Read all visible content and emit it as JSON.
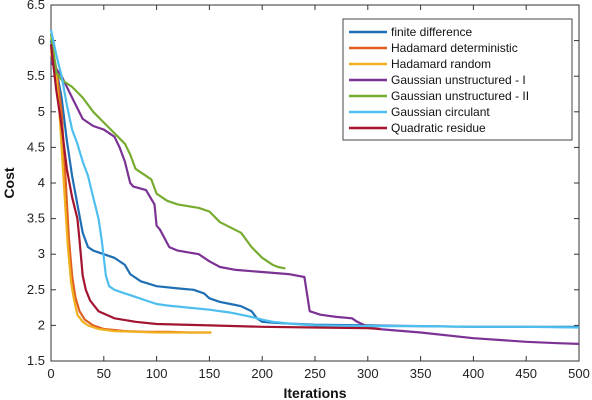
{
  "chart_data": {
    "type": "line",
    "title": "",
    "xlabel": "Iterations",
    "ylabel": "Cost",
    "xlim": [
      0,
      500
    ],
    "ylim": [
      1.5,
      6.5
    ],
    "xticks": [
      "0",
      "50",
      "100",
      "150",
      "200",
      "250",
      "300",
      "350",
      "400",
      "450",
      "500"
    ],
    "yticks": [
      "1.5",
      "2",
      "2.5",
      "3",
      "3.5",
      "4",
      "4.5",
      "5",
      "5.5",
      "6",
      "6.5"
    ],
    "grid": false,
    "legend_position": "top-right",
    "series": [
      {
        "name": "finite difference",
        "color": "#1f6fb5",
        "points": [
          [
            0,
            6.0
          ],
          [
            5,
            5.6
          ],
          [
            10,
            5.2
          ],
          [
            15,
            4.6
          ],
          [
            20,
            4.1
          ],
          [
            25,
            3.7
          ],
          [
            30,
            3.3
          ],
          [
            35,
            3.1
          ],
          [
            40,
            3.05
          ],
          [
            50,
            3.0
          ],
          [
            60,
            2.95
          ],
          [
            70,
            2.85
          ],
          [
            75,
            2.72
          ],
          [
            85,
            2.62
          ],
          [
            100,
            2.55
          ],
          [
            120,
            2.52
          ],
          [
            135,
            2.5
          ],
          [
            145,
            2.45
          ],
          [
            150,
            2.38
          ],
          [
            160,
            2.33
          ],
          [
            170,
            2.3
          ],
          [
            180,
            2.27
          ],
          [
            190,
            2.2
          ],
          [
            195,
            2.1
          ],
          [
            200,
            2.05
          ],
          [
            210,
            2.04
          ],
          [
            220,
            2.03
          ],
          [
            250,
            2.01
          ],
          [
            300,
            2.0
          ],
          [
            350,
            1.99
          ],
          [
            400,
            1.98
          ],
          [
            450,
            1.98
          ],
          [
            500,
            1.98
          ]
        ]
      },
      {
        "name": "Hadamard deterministic",
        "color": "#e06020",
        "points": [
          [
            0,
            5.9
          ],
          [
            5,
            5.6
          ],
          [
            10,
            5.0
          ],
          [
            14,
            4.0
          ],
          [
            17,
            3.2
          ],
          [
            20,
            2.7
          ],
          [
            23,
            2.4
          ],
          [
            27,
            2.2
          ],
          [
            32,
            2.08
          ],
          [
            40,
            2.0
          ],
          [
            50,
            1.95
          ],
          [
            70,
            1.92
          ],
          [
            90,
            1.91
          ],
          [
            110,
            1.91
          ],
          [
            130,
            1.9
          ],
          [
            152,
            1.9
          ]
        ]
      },
      {
        "name": "Hadamard random",
        "color": "#f0b020",
        "points": [
          [
            0,
            5.85
          ],
          [
            5,
            5.5
          ],
          [
            8,
            5.0
          ],
          [
            10,
            4.5
          ],
          [
            13,
            3.8
          ],
          [
            16,
            3.1
          ],
          [
            19,
            2.6
          ],
          [
            22,
            2.35
          ],
          [
            25,
            2.15
          ],
          [
            30,
            2.05
          ],
          [
            35,
            2.0
          ],
          [
            45,
            1.95
          ],
          [
            60,
            1.92
          ],
          [
            80,
            1.91
          ],
          [
            100,
            1.9
          ],
          [
            130,
            1.9
          ],
          [
            152,
            1.9
          ]
        ]
      },
      {
        "name": "Gaussian unstructured - I",
        "color": "#7b3294",
        "points": [
          [
            0,
            5.7
          ],
          [
            10,
            5.5
          ],
          [
            20,
            5.2
          ],
          [
            30,
            4.9
          ],
          [
            40,
            4.8
          ],
          [
            50,
            4.75
          ],
          [
            60,
            4.65
          ],
          [
            65,
            4.5
          ],
          [
            70,
            4.3
          ],
          [
            75,
            4.0
          ],
          [
            78,
            3.95
          ],
          [
            90,
            3.9
          ],
          [
            98,
            3.7
          ],
          [
            100,
            3.4
          ],
          [
            103,
            3.35
          ],
          [
            112,
            3.1
          ],
          [
            120,
            3.05
          ],
          [
            140,
            3.0
          ],
          [
            150,
            2.9
          ],
          [
            160,
            2.82
          ],
          [
            175,
            2.78
          ],
          [
            200,
            2.75
          ],
          [
            225,
            2.72
          ],
          [
            240,
            2.68
          ],
          [
            245,
            2.2
          ],
          [
            255,
            2.15
          ],
          [
            270,
            2.12
          ],
          [
            285,
            2.1
          ],
          [
            290,
            2.05
          ],
          [
            300,
            1.98
          ],
          [
            310,
            1.95
          ],
          [
            350,
            1.9
          ],
          [
            400,
            1.82
          ],
          [
            450,
            1.77
          ],
          [
            480,
            1.75
          ],
          [
            500,
            1.74
          ]
        ]
      },
      {
        "name": "Gaussian unstructured - II",
        "color": "#77ac30",
        "points": [
          [
            0,
            6.1
          ],
          [
            5,
            5.55
          ],
          [
            10,
            5.45
          ],
          [
            20,
            5.35
          ],
          [
            30,
            5.2
          ],
          [
            40,
            5.0
          ],
          [
            50,
            4.85
          ],
          [
            60,
            4.7
          ],
          [
            70,
            4.55
          ],
          [
            75,
            4.4
          ],
          [
            80,
            4.2
          ],
          [
            95,
            4.05
          ],
          [
            100,
            3.85
          ],
          [
            110,
            3.75
          ],
          [
            120,
            3.7
          ],
          [
            140,
            3.65
          ],
          [
            150,
            3.6
          ],
          [
            160,
            3.45
          ],
          [
            180,
            3.3
          ],
          [
            190,
            3.1
          ],
          [
            200,
            2.95
          ],
          [
            210,
            2.85
          ],
          [
            215,
            2.82
          ],
          [
            222,
            2.8
          ]
        ]
      },
      {
        "name": "Gaussian circulant",
        "color": "#4dbeee",
        "points": [
          [
            0,
            6.15
          ],
          [
            5,
            5.8
          ],
          [
            10,
            5.5
          ],
          [
            15,
            5.1
          ],
          [
            20,
            4.75
          ],
          [
            25,
            4.55
          ],
          [
            30,
            4.3
          ],
          [
            35,
            4.1
          ],
          [
            40,
            3.8
          ],
          [
            45,
            3.5
          ],
          [
            48,
            3.2
          ],
          [
            52,
            2.7
          ],
          [
            55,
            2.55
          ],
          [
            60,
            2.5
          ],
          [
            70,
            2.45
          ],
          [
            80,
            2.4
          ],
          [
            90,
            2.35
          ],
          [
            100,
            2.3
          ],
          [
            110,
            2.28
          ],
          [
            130,
            2.25
          ],
          [
            150,
            2.22
          ],
          [
            170,
            2.18
          ],
          [
            190,
            2.12
          ],
          [
            200,
            2.08
          ],
          [
            210,
            2.05
          ],
          [
            230,
            2.02
          ],
          [
            250,
            2.0
          ],
          [
            300,
            1.99
          ],
          [
            350,
            1.99
          ],
          [
            400,
            1.98
          ],
          [
            450,
            1.98
          ],
          [
            500,
            1.97
          ]
        ]
      },
      {
        "name": "Quadratic residue",
        "color": "#a2142f",
        "points": [
          [
            0,
            5.95
          ],
          [
            5,
            5.3
          ],
          [
            10,
            4.8
          ],
          [
            15,
            4.2
          ],
          [
            20,
            3.8
          ],
          [
            25,
            3.5
          ],
          [
            27,
            3.2
          ],
          [
            30,
            2.7
          ],
          [
            33,
            2.5
          ],
          [
            37,
            2.35
          ],
          [
            45,
            2.2
          ],
          [
            60,
            2.1
          ],
          [
            80,
            2.05
          ],
          [
            100,
            2.02
          ],
          [
            150,
            2.0
          ],
          [
            200,
            1.98
          ],
          [
            250,
            1.97
          ],
          [
            300,
            1.96
          ],
          [
            312,
            1.95
          ]
        ]
      }
    ]
  }
}
